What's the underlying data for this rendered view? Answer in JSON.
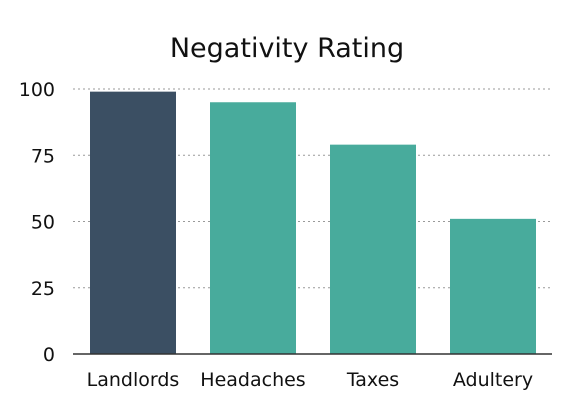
{
  "chart_data": {
    "type": "bar",
    "title": "Negativity Rating",
    "categories": [
      "Landlords",
      "Headaches",
      "Taxes",
      "Adultery"
    ],
    "values": [
      99,
      95,
      79,
      51
    ],
    "xlabel": "",
    "ylabel": "",
    "ylim": [
      0,
      100
    ],
    "yticks": [
      0,
      25,
      50,
      75,
      100
    ],
    "grid": true,
    "gridline_color": "#9a9a9a",
    "colors": [
      "#3b4f63",
      "#48ab9c",
      "#48ab9c",
      "#48ab9c"
    ]
  }
}
